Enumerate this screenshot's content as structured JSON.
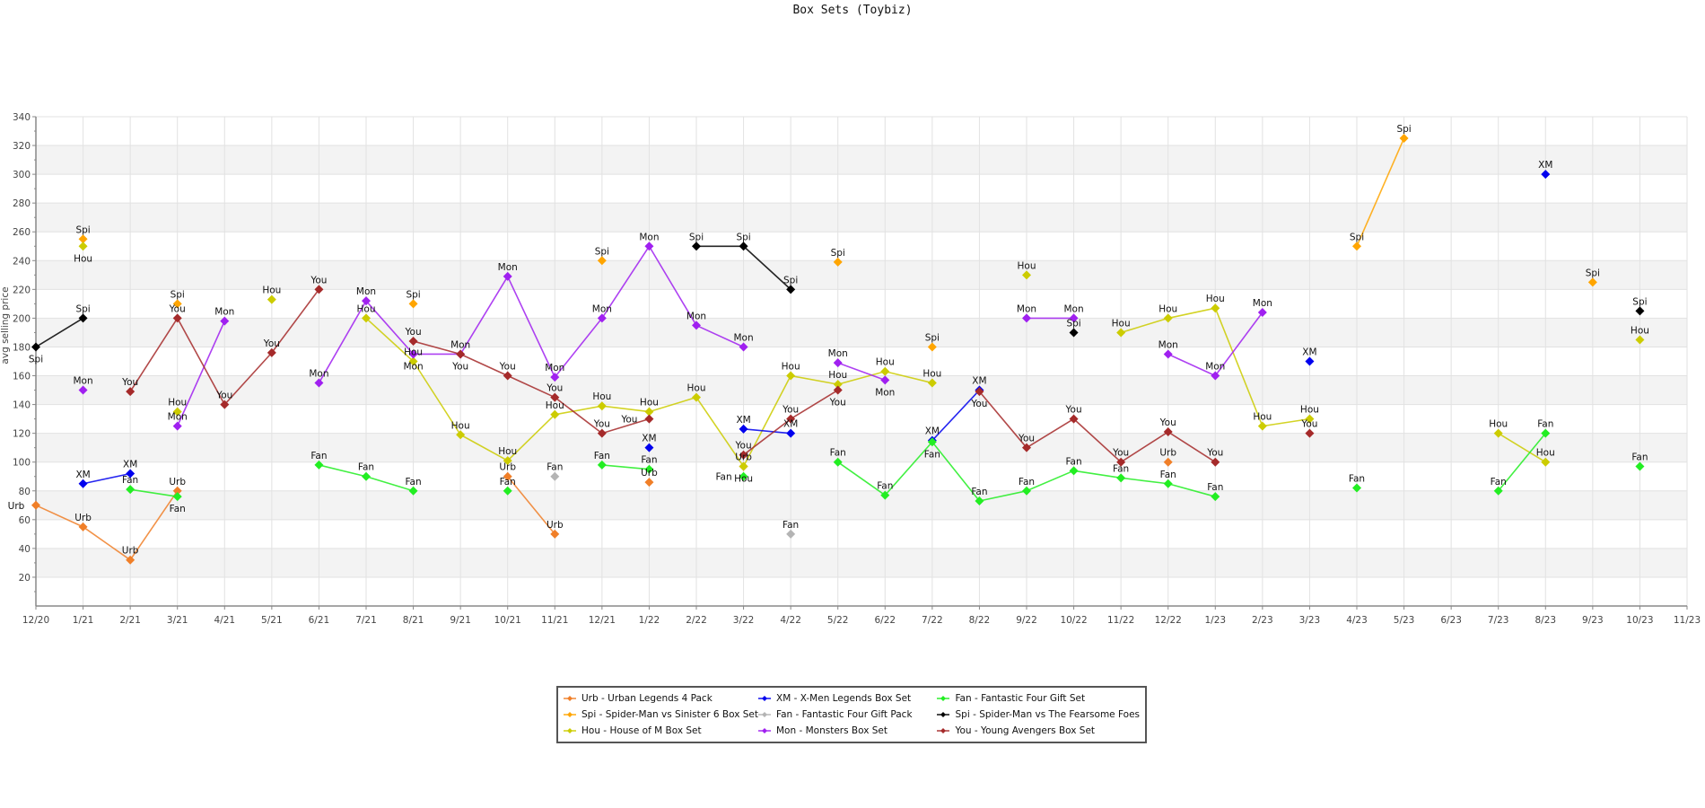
{
  "chart_data": {
    "type": "line",
    "title": "Box Sets (Toybiz)",
    "xlabel": "",
    "ylabel": "avg selling price",
    "ylim": [
      0,
      340
    ],
    "yticks": [
      20,
      40,
      60,
      80,
      100,
      120,
      140,
      160,
      180,
      200,
      220,
      240,
      260,
      280,
      300,
      320,
      340
    ],
    "grid": true,
    "legend_position": "bottom",
    "categories": [
      "12/20",
      "1/21",
      "2/21",
      "3/21",
      "4/21",
      "5/21",
      "6/21",
      "7/21",
      "8/21",
      "9/21",
      "10/21",
      "11/21",
      "12/21",
      "1/22",
      "2/22",
      "3/22",
      "4/22",
      "5/22",
      "6/22",
      "7/22",
      "8/22",
      "9/22",
      "10/22",
      "11/22",
      "12/22",
      "1/23",
      "2/23",
      "3/23",
      "4/23",
      "5/23",
      "6/23",
      "7/23",
      "8/23",
      "9/23",
      "10/23",
      "11/23"
    ],
    "series": [
      {
        "short": "Urb",
        "name": "Urb - Urban Legends 4 Pack",
        "color": "#f07f28",
        "values": [
          70,
          55,
          32,
          80,
          null,
          null,
          null,
          null,
          null,
          null,
          90,
          50,
          null,
          86,
          null,
          97,
          null,
          null,
          null,
          null,
          null,
          null,
          null,
          null,
          100,
          null,
          null,
          null,
          null,
          null,
          null,
          null,
          null,
          null,
          null,
          null
        ]
      },
      {
        "short": "Spi",
        "name": "Spi - Spider-Man vs Sinister 6 Box Set",
        "color": "#ffa500",
        "values": [
          null,
          255,
          null,
          210,
          null,
          null,
          null,
          null,
          210,
          null,
          null,
          null,
          240,
          null,
          null,
          null,
          null,
          239,
          null,
          180,
          null,
          null,
          null,
          null,
          null,
          null,
          null,
          null,
          250,
          325,
          null,
          null,
          null,
          225,
          null,
          null
        ]
      },
      {
        "short": "Hou",
        "name": "Hou - House of M Box Set",
        "color": "#cccc00",
        "values": [
          null,
          250,
          null,
          135,
          null,
          213,
          null,
          200,
          170,
          119,
          101,
          133,
          139,
          135,
          145,
          97,
          160,
          154,
          163,
          155,
          null,
          230,
          null,
          190,
          200,
          207,
          125,
          130,
          null,
          null,
          null,
          120,
          100,
          null,
          185,
          null
        ]
      },
      {
        "short": "XM",
        "name": "XM - X-Men Legends Box Set",
        "color": "#0000ee",
        "values": [
          null,
          85,
          92,
          null,
          null,
          null,
          null,
          null,
          null,
          null,
          null,
          null,
          null,
          110,
          null,
          123,
          120,
          null,
          null,
          115,
          150,
          null,
          null,
          null,
          null,
          null,
          null,
          170,
          null,
          null,
          null,
          null,
          300,
          null,
          null,
          null
        ]
      },
      {
        "short": "Fan",
        "name": "Fan - Fantastic Four Gift Pack",
        "color": "#b4b4b4",
        "values": [
          null,
          null,
          null,
          null,
          null,
          null,
          null,
          null,
          null,
          null,
          null,
          90,
          null,
          null,
          null,
          null,
          50,
          null,
          null,
          null,
          null,
          null,
          null,
          null,
          null,
          null,
          null,
          null,
          null,
          null,
          null,
          null,
          null,
          null,
          null,
          null
        ]
      },
      {
        "short": "Mon",
        "name": "Mon - Monsters Box Set",
        "color": "#a020f0",
        "values": [
          null,
          150,
          null,
          125,
          198,
          null,
          155,
          212,
          175,
          175,
          229,
          159,
          200,
          250,
          195,
          180,
          null,
          169,
          157,
          null,
          null,
          200,
          200,
          null,
          175,
          160,
          204,
          null,
          null,
          null,
          null,
          null,
          null,
          null,
          null,
          null
        ]
      },
      {
        "short": "Fan",
        "name": "Fan - Fantastic Four Gift Set",
        "color": "#22ee22",
        "values": [
          null,
          null,
          81,
          76,
          null,
          null,
          98,
          90,
          80,
          null,
          80,
          null,
          98,
          95,
          null,
          90,
          null,
          100,
          77,
          114,
          73,
          80,
          94,
          89,
          85,
          76,
          null,
          null,
          82,
          null,
          null,
          80,
          120,
          null,
          97,
          null
        ]
      },
      {
        "short": "Spi",
        "name": "Spi - Spider-Man vs The Fearsome Foes",
        "color": "#000000",
        "values": [
          180,
          200,
          null,
          null,
          null,
          null,
          null,
          null,
          null,
          null,
          null,
          null,
          null,
          null,
          250,
          250,
          220,
          null,
          null,
          null,
          null,
          null,
          190,
          null,
          null,
          null,
          null,
          null,
          null,
          null,
          null,
          null,
          null,
          null,
          205,
          null
        ]
      },
      {
        "short": "You",
        "name": "You - Young Avengers Box Set",
        "color": "#a52a2a",
        "values": [
          null,
          null,
          149,
          200,
          140,
          176,
          220,
          null,
          184,
          175,
          160,
          145,
          120,
          130,
          null,
          105,
          130,
          150,
          null,
          null,
          149,
          110,
          130,
          100,
          121,
          100,
          null,
          120,
          null,
          null,
          null,
          null,
          null,
          null,
          null,
          null
        ]
      }
    ]
  }
}
